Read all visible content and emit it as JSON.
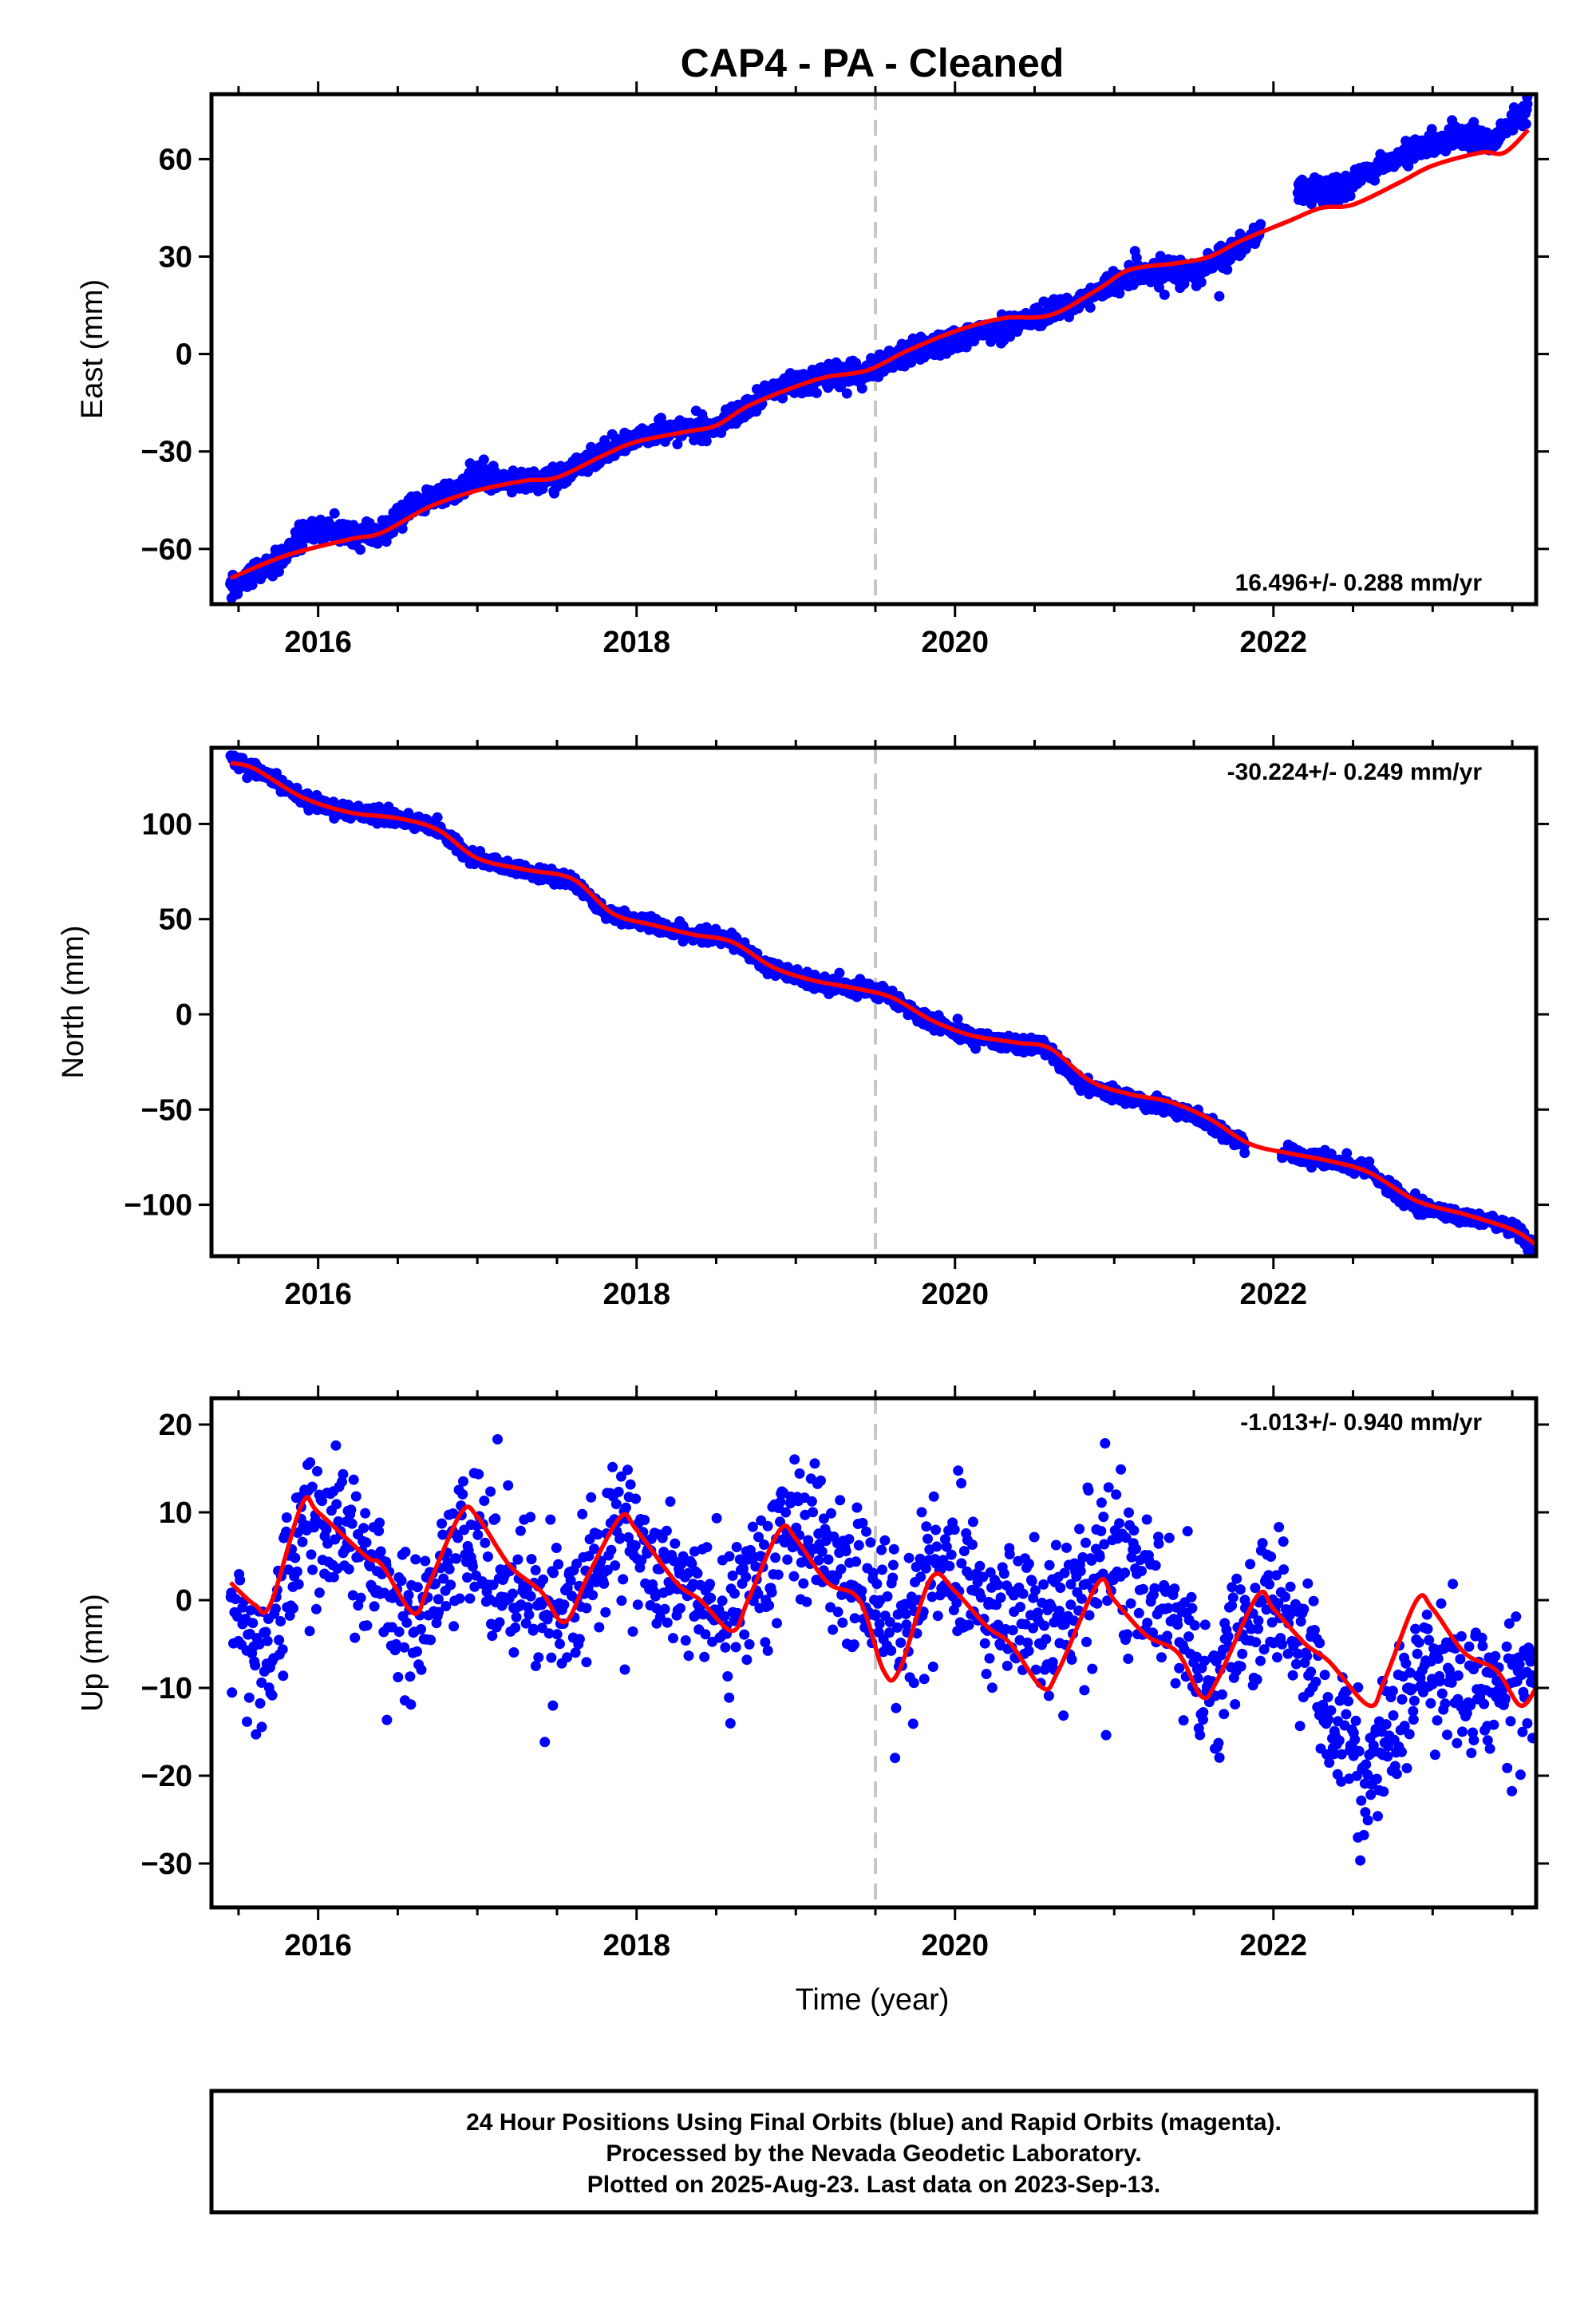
{
  "chart_data": {
    "title": "CAP4  - PA - Cleaned",
    "type": "scatter",
    "colors": {
      "points": "#0000ff",
      "fit": "#ff0000",
      "event": "#c8c8c8",
      "frame": "#000000"
    },
    "x_range": [
      2015.33,
      2023.65
    ],
    "x_ticks": [
      2016,
      2018,
      2020,
      2022
    ],
    "x_tick_labels": [
      "2016",
      "2018",
      "2020",
      "2022"
    ],
    "xlabel": "Time (year)",
    "event_year": 2019.5,
    "grid": false,
    "panels": [
      {
        "ylabel": "East (mm)",
        "ylim": [
          -77,
          80
        ],
        "y_ticks": [
          60,
          30,
          0,
          -30,
          -60
        ],
        "y_tick_labels": [
          "60",
          "30",
          "0",
          "−30",
          "−60"
        ],
        "rate_text": "16.496+/- 0.288 mm/yr",
        "rate_position": "bottom-right",
        "noise": 1.7,
        "observed": [
          [
            2015.45,
            -72
          ],
          [
            2015.8,
            -62
          ],
          [
            2015.9,
            -55
          ],
          [
            2016.2,
            -55
          ],
          [
            2016.4,
            -55
          ],
          [
            2016.6,
            -47
          ],
          [
            2016.9,
            -41
          ],
          [
            2016.95,
            -38
          ],
          [
            2017.3,
            -39
          ],
          [
            2017.5,
            -38
          ],
          [
            2017.8,
            -30
          ],
          [
            2018.0,
            -26
          ],
          [
            2018.2,
            -23
          ],
          [
            2018.5,
            -23
          ],
          [
            2018.7,
            -16
          ],
          [
            2018.9,
            -10
          ],
          [
            2019.2,
            -7
          ],
          [
            2019.4,
            -6
          ],
          [
            2019.6,
            -2
          ],
          [
            2019.9,
            3
          ],
          [
            2020.1,
            6
          ],
          [
            2020.3,
            8
          ],
          [
            2020.6,
            13
          ],
          [
            2020.9,
            19
          ],
          [
            2021.0,
            22
          ],
          [
            2021.2,
            25
          ],
          [
            2021.5,
            25
          ],
          [
            2021.7,
            30
          ],
          [
            2021.85,
            35
          ],
          [
            2021.9,
            37
          ],
          [
            2022.15,
            51
          ],
          [
            2022.4,
            50
          ],
          [
            2022.6,
            57
          ],
          [
            2022.8,
            60
          ],
          [
            2023.0,
            65
          ],
          [
            2023.2,
            67
          ],
          [
            2023.4,
            67
          ],
          [
            2023.6,
            76
          ]
        ],
        "gaps": [
          [
            2021.92,
            2022.15
          ]
        ],
        "fit": [
          [
            2015.45,
            -69
          ],
          [
            2015.8,
            -62
          ],
          [
            2016.2,
            -57
          ],
          [
            2016.4,
            -55
          ],
          [
            2016.7,
            -47
          ],
          [
            2017.0,
            -42
          ],
          [
            2017.3,
            -39
          ],
          [
            2017.5,
            -38
          ],
          [
            2017.8,
            -31
          ],
          [
            2018.0,
            -27
          ],
          [
            2018.3,
            -24
          ],
          [
            2018.5,
            -22
          ],
          [
            2018.7,
            -16
          ],
          [
            2019.0,
            -10
          ],
          [
            2019.2,
            -7
          ],
          [
            2019.45,
            -5
          ],
          [
            2019.7,
            1
          ],
          [
            2020.0,
            7
          ],
          [
            2020.3,
            11
          ],
          [
            2020.6,
            12
          ],
          [
            2020.9,
            20
          ],
          [
            2021.1,
            26
          ],
          [
            2021.4,
            28
          ],
          [
            2021.6,
            30
          ],
          [
            2021.8,
            35
          ],
          [
            2022.1,
            41
          ],
          [
            2022.3,
            45
          ],
          [
            2022.5,
            46
          ],
          [
            2022.8,
            53
          ],
          [
            2023.0,
            58
          ],
          [
            2023.3,
            62
          ],
          [
            2023.45,
            62
          ],
          [
            2023.6,
            69
          ]
        ]
      },
      {
        "ylabel": "North (mm)",
        "ylim": [
          -127,
          140
        ],
        "y_ticks": [
          100,
          50,
          0,
          -50,
          -100
        ],
        "y_tick_labels": [
          "100",
          "50",
          "0",
          "−50",
          "−100"
        ],
        "rate_text": "-30.224+/- 0.249 mm/yr",
        "rate_position": "top-right",
        "noise": 1.8,
        "observed": [
          [
            2015.45,
            134
          ],
          [
            2015.6,
            130
          ],
          [
            2015.9,
            113
          ],
          [
            2016.2,
            106
          ],
          [
            2016.5,
            103
          ],
          [
            2016.75,
            98
          ],
          [
            2016.95,
            82
          ],
          [
            2017.3,
            75
          ],
          [
            2017.6,
            70
          ],
          [
            2017.8,
            53
          ],
          [
            2018.1,
            47
          ],
          [
            2018.3,
            42
          ],
          [
            2018.6,
            40
          ],
          [
            2018.8,
            25
          ],
          [
            2019.1,
            18
          ],
          [
            2019.3,
            14
          ],
          [
            2019.55,
            12
          ],
          [
            2019.8,
            -2
          ],
          [
            2020.1,
            -12
          ],
          [
            2020.4,
            -16
          ],
          [
            2020.55,
            -16
          ],
          [
            2020.8,
            -37
          ],
          [
            2021.0,
            -42
          ],
          [
            2021.3,
            -48
          ],
          [
            2021.55,
            -55
          ],
          [
            2021.8,
            -68
          ],
          [
            2022.1,
            -73
          ],
          [
            2022.4,
            -78
          ],
          [
            2022.6,
            -82
          ],
          [
            2022.9,
            -101
          ],
          [
            2023.2,
            -106
          ],
          [
            2023.5,
            -112
          ],
          [
            2023.65,
            -123
          ]
        ],
        "gaps": [
          [
            2021.82,
            2022.05
          ]
        ],
        "fit": [
          [
            2015.45,
            132
          ],
          [
            2015.6,
            129
          ],
          [
            2015.9,
            114
          ],
          [
            2016.2,
            106
          ],
          [
            2016.5,
            103
          ],
          [
            2016.75,
            97
          ],
          [
            2017.0,
            82
          ],
          [
            2017.3,
            76
          ],
          [
            2017.6,
            71
          ],
          [
            2017.85,
            53
          ],
          [
            2018.1,
            47
          ],
          [
            2018.35,
            42
          ],
          [
            2018.6,
            38
          ],
          [
            2018.85,
            25
          ],
          [
            2019.1,
            18
          ],
          [
            2019.35,
            14
          ],
          [
            2019.6,
            9
          ],
          [
            2019.85,
            -3
          ],
          [
            2020.1,
            -11
          ],
          [
            2020.4,
            -15
          ],
          [
            2020.6,
            -18
          ],
          [
            2020.85,
            -35
          ],
          [
            2021.1,
            -42
          ],
          [
            2021.35,
            -46
          ],
          [
            2021.6,
            -55
          ],
          [
            2021.85,
            -68
          ],
          [
            2022.1,
            -73
          ],
          [
            2022.35,
            -77
          ],
          [
            2022.6,
            -83
          ],
          [
            2022.9,
            -98
          ],
          [
            2023.2,
            -105
          ],
          [
            2023.5,
            -113
          ],
          [
            2023.65,
            -121
          ]
        ]
      },
      {
        "ylabel": "Up (mm)",
        "ylim": [
          -35,
          23
        ],
        "y_ticks": [
          20,
          10,
          0,
          -10,
          -20,
          -30
        ],
        "y_tick_labels": [
          "20",
          "10",
          "0",
          "−10",
          "−20",
          "−30"
        ],
        "rate_text": "-1.013+/- 0.940 mm/yr",
        "rate_position": "top-right",
        "noise": 4.2,
        "observed": [
          [
            2015.45,
            -2
          ],
          [
            2015.65,
            -8
          ],
          [
            2015.95,
            10
          ],
          [
            2016.3,
            4
          ],
          [
            2016.6,
            -3
          ],
          [
            2016.9,
            8
          ],
          [
            2017.2,
            2
          ],
          [
            2017.5,
            -2
          ],
          [
            2017.9,
            7
          ],
          [
            2018.2,
            2
          ],
          [
            2018.6,
            -2
          ],
          [
            2018.95,
            9
          ],
          [
            2019.3,
            3
          ],
          [
            2019.6,
            -4
          ],
          [
            2019.9,
            4
          ],
          [
            2020.2,
            0
          ],
          [
            2020.6,
            -3
          ],
          [
            2020.95,
            5
          ],
          [
            2021.3,
            1
          ],
          [
            2021.6,
            -10
          ],
          [
            2021.95,
            1
          ],
          [
            2022.25,
            -8
          ],
          [
            2022.6,
            -21
          ],
          [
            2022.9,
            -8
          ],
          [
            2023.3,
            -10
          ],
          [
            2023.65,
            -10
          ]
        ],
        "fit": [
          [
            2015.45,
            2
          ],
          [
            2015.6,
            -0.5
          ],
          [
            2015.7,
            -0.5
          ],
          [
            2015.9,
            11
          ],
          [
            2016.0,
            10
          ],
          [
            2016.3,
            5
          ],
          [
            2016.4,
            4
          ],
          [
            2016.6,
            -1.5
          ],
          [
            2016.7,
            2
          ],
          [
            2016.9,
            10
          ],
          [
            2017.0,
            9.5
          ],
          [
            2017.2,
            4
          ],
          [
            2017.4,
            1
          ],
          [
            2017.55,
            -2.5
          ],
          [
            2017.7,
            3
          ],
          [
            2017.9,
            9.5
          ],
          [
            2018.0,
            8
          ],
          [
            2018.25,
            2
          ],
          [
            2018.4,
            0
          ],
          [
            2018.6,
            -3.5
          ],
          [
            2018.7,
            0
          ],
          [
            2018.9,
            8
          ],
          [
            2019.0,
            7
          ],
          [
            2019.2,
            2
          ],
          [
            2019.4,
            0
          ],
          [
            2019.55,
            -8
          ],
          [
            2019.65,
            -8
          ],
          [
            2019.85,
            2.5
          ],
          [
            2020.0,
            1
          ],
          [
            2020.2,
            -3
          ],
          [
            2020.35,
            -5
          ],
          [
            2020.55,
            -10
          ],
          [
            2020.65,
            -8
          ],
          [
            2020.9,
            2
          ],
          [
            2021.0,
            0
          ],
          [
            2021.2,
            -4
          ],
          [
            2021.4,
            -6
          ],
          [
            2021.55,
            -11
          ],
          [
            2021.65,
            -9
          ],
          [
            2021.9,
            0.5
          ],
          [
            2022.0,
            -1
          ],
          [
            2022.2,
            -5
          ],
          [
            2022.35,
            -7
          ],
          [
            2022.6,
            -12
          ],
          [
            2022.7,
            -9
          ],
          [
            2022.9,
            0
          ],
          [
            2023.0,
            -1
          ],
          [
            2023.2,
            -6
          ],
          [
            2023.4,
            -8
          ],
          [
            2023.55,
            -12
          ],
          [
            2023.65,
            -10
          ]
        ]
      }
    ]
  },
  "footer": {
    "lines": [
      "24 Hour Positions Using Final Orbits (blue) and Rapid Orbits (magenta).",
      "Processed by the Nevada Geodetic Laboratory.",
      "Plotted on 2025-Aug-23. Last data on 2023-Sep-13."
    ]
  }
}
